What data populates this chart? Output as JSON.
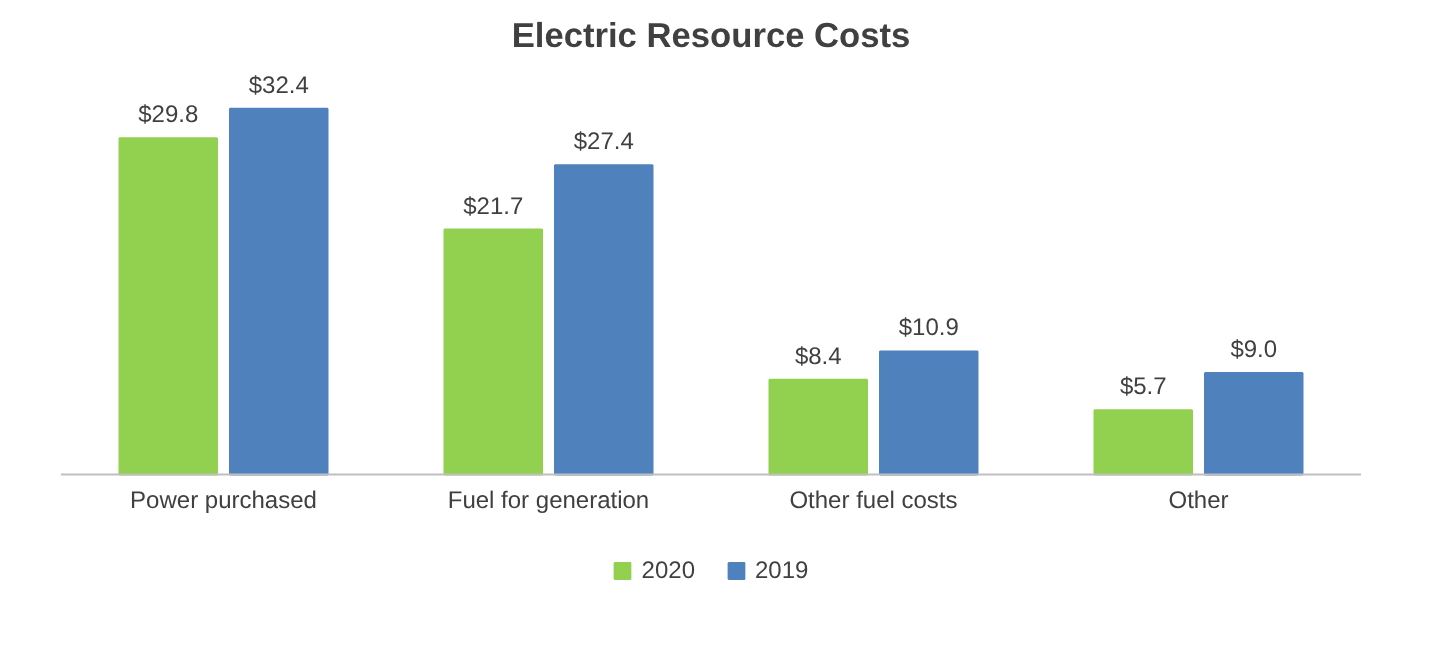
{
  "chart_data": {
    "type": "bar",
    "title": "Electric Resource Costs",
    "categories": [
      "Power purchased",
      "Fuel for generation",
      "Other fuel costs",
      "Other"
    ],
    "series": [
      {
        "name": "2020",
        "color": "#92d050",
        "values": [
          29.8,
          21.7,
          8.4,
          5.7
        ],
        "value_labels": [
          "$29.8",
          "$21.7",
          "$8.4",
          "$5.7"
        ]
      },
      {
        "name": "2019",
        "color": "#4f81bd",
        "values": [
          32.4,
          27.4,
          10.9,
          9.0
        ],
        "value_labels": [
          "$32.4",
          "$27.4",
          "$10.9",
          "$9.0"
        ]
      }
    ],
    "legend": "bottom"
  }
}
